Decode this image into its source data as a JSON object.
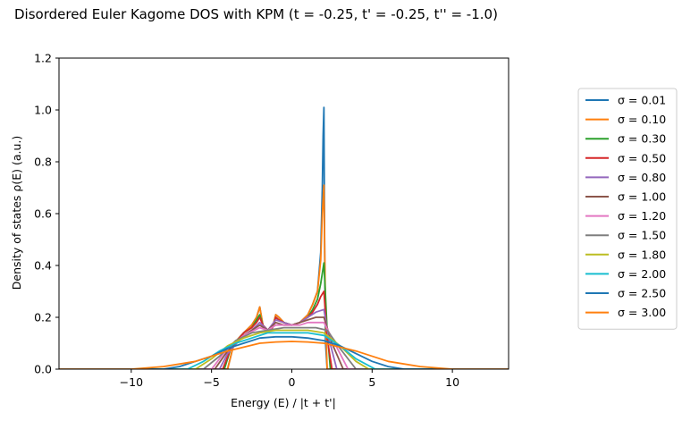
{
  "chart_data": {
    "type": "line",
    "title": "Disordered Euler Kagome DOS with KPM (t = -0.25, t' = -0.25, t'' = -1.0)",
    "xlabel": "Energy (E) / |t + t'|",
    "ylabel": "Density of states ρ(E) (a.u.)",
    "xlim": [
      -14.5,
      13.5
    ],
    "ylim": [
      0,
      1.2
    ],
    "xticks": [
      -10,
      -5,
      0,
      5,
      10
    ],
    "xtick_labels": [
      "−10",
      "−5",
      "0",
      "5",
      "10"
    ],
    "yticks": [
      0.0,
      0.2,
      0.4,
      0.6,
      0.8,
      1.0,
      1.2
    ],
    "ytick_labels": [
      "0.0",
      "0.2",
      "0.4",
      "0.6",
      "0.8",
      "1.0",
      "1.2"
    ],
    "grid": false,
    "legend_position": "right",
    "series": [
      {
        "name": "σ = 0.01",
        "color": "#1f77b4",
        "x": [
          -4,
          -3.6,
          -3,
          -2.5,
          -2.2,
          -2,
          -1.8,
          -1.5,
          -1.2,
          -1,
          -0.8,
          -0.5,
          0,
          0.5,
          1,
          1.3,
          1.6,
          1.8,
          1.9,
          1.95,
          2,
          2.05,
          2.1,
          2.2
        ],
        "y": [
          0,
          0.1,
          0.14,
          0.17,
          0.2,
          0.24,
          0.17,
          0.15,
          0.16,
          0.21,
          0.2,
          0.18,
          0.17,
          0.18,
          0.21,
          0.25,
          0.3,
          0.45,
          0.7,
          0.9,
          1.01,
          0.4,
          0.1,
          0
        ]
      },
      {
        "name": "σ = 0.10",
        "color": "#ff7f0e",
        "x": [
          -4,
          -3.6,
          -3,
          -2.5,
          -2.2,
          -2,
          -1.8,
          -1.5,
          -1.2,
          -1,
          -0.8,
          -0.5,
          0,
          0.5,
          1,
          1.3,
          1.6,
          1.8,
          1.9,
          2,
          2.1,
          2.2
        ],
        "y": [
          0,
          0.1,
          0.14,
          0.17,
          0.2,
          0.24,
          0.17,
          0.15,
          0.16,
          0.21,
          0.2,
          0.18,
          0.17,
          0.18,
          0.21,
          0.25,
          0.3,
          0.42,
          0.6,
          0.71,
          0.2,
          0
        ]
      },
      {
        "name": "σ = 0.30",
        "color": "#2ca02c",
        "x": [
          -4.2,
          -3.8,
          -3,
          -2.5,
          -2.2,
          -2,
          -1.8,
          -1.5,
          -1.2,
          -1,
          -0.8,
          -0.5,
          0,
          0.5,
          1,
          1.3,
          1.6,
          1.8,
          2,
          2.2,
          2.4
        ],
        "y": [
          0,
          0.08,
          0.14,
          0.16,
          0.19,
          0.21,
          0.17,
          0.15,
          0.16,
          0.2,
          0.19,
          0.18,
          0.17,
          0.18,
          0.2,
          0.23,
          0.27,
          0.33,
          0.41,
          0.15,
          0
        ]
      },
      {
        "name": "σ = 0.50",
        "color": "#d62728",
        "x": [
          -4.3,
          -3.8,
          -3,
          -2.5,
          -2.2,
          -2,
          -1.8,
          -1.5,
          -1.2,
          -1,
          -0.8,
          -0.5,
          0,
          0.5,
          1,
          1.3,
          1.6,
          1.8,
          2,
          2.2,
          2.5
        ],
        "y": [
          0,
          0.08,
          0.14,
          0.16,
          0.18,
          0.2,
          0.17,
          0.15,
          0.16,
          0.2,
          0.19,
          0.18,
          0.17,
          0.18,
          0.2,
          0.22,
          0.25,
          0.28,
          0.3,
          0.12,
          0
        ]
      },
      {
        "name": "σ = 0.80",
        "color": "#9467bd",
        "x": [
          -4.5,
          -4,
          -3,
          -2.5,
          -2,
          -1.5,
          -1,
          -0.5,
          0,
          0.5,
          1,
          1.5,
          2,
          2.3,
          2.8
        ],
        "y": [
          0,
          0.06,
          0.13,
          0.15,
          0.18,
          0.15,
          0.19,
          0.18,
          0.17,
          0.18,
          0.2,
          0.22,
          0.23,
          0.12,
          0
        ]
      },
      {
        "name": "σ = 1.00",
        "color": "#8c564b",
        "x": [
          -4.8,
          -4,
          -3,
          -2.5,
          -2,
          -1.5,
          -1,
          -0.5,
          0,
          0.5,
          1,
          1.5,
          2,
          2.5,
          3.2
        ],
        "y": [
          0,
          0.07,
          0.13,
          0.15,
          0.17,
          0.15,
          0.18,
          0.17,
          0.17,
          0.18,
          0.19,
          0.2,
          0.2,
          0.1,
          0
        ]
      },
      {
        "name": "σ = 1.20",
        "color": "#e377c2",
        "x": [
          -5,
          -4,
          -3,
          -2,
          -1.5,
          -1,
          -0.5,
          0,
          0.5,
          1,
          1.5,
          2,
          2.5,
          3.5
        ],
        "y": [
          0,
          0.08,
          0.13,
          0.16,
          0.15,
          0.17,
          0.17,
          0.17,
          0.17,
          0.18,
          0.18,
          0.18,
          0.12,
          0
        ]
      },
      {
        "name": "σ = 1.50",
        "color": "#7f7f7f",
        "x": [
          -5.5,
          -4.5,
          -3.5,
          -2.5,
          -1.5,
          -0.5,
          0.5,
          1.5,
          2.2,
          3,
          4
        ],
        "y": [
          0,
          0.05,
          0.11,
          0.14,
          0.15,
          0.16,
          0.16,
          0.16,
          0.15,
          0.08,
          0
        ]
      },
      {
        "name": "σ = 1.80",
        "color": "#bcbd22",
        "x": [
          -6,
          -5,
          -4,
          -3,
          -2,
          -1,
          0,
          1,
          2,
          3,
          4,
          4.8
        ],
        "y": [
          0,
          0.04,
          0.09,
          0.12,
          0.14,
          0.15,
          0.15,
          0.15,
          0.14,
          0.09,
          0.03,
          0
        ]
      },
      {
        "name": "σ = 2.00",
        "color": "#17becf",
        "x": [
          -6.5,
          -5.5,
          -4.5,
          -3.5,
          -2.5,
          -1.5,
          0,
          1,
          2,
          3,
          4,
          5.2
        ],
        "y": [
          0,
          0.03,
          0.07,
          0.1,
          0.12,
          0.14,
          0.14,
          0.14,
          0.13,
          0.09,
          0.04,
          0
        ]
      },
      {
        "name": "σ = 2.50",
        "color": "#1f77b4",
        "x": [
          -8,
          -7,
          -6,
          -5,
          -4,
          -3,
          -2,
          -1,
          0,
          1,
          2,
          3,
          4,
          5,
          6,
          7
        ],
        "y": [
          0,
          0.01,
          0.03,
          0.05,
          0.08,
          0.1,
          0.12,
          0.125,
          0.125,
          0.12,
          0.11,
          0.09,
          0.06,
          0.03,
          0.01,
          0
        ]
      },
      {
        "name": "σ = 3.00",
        "color": "#ff7f0e",
        "x": [
          -10,
          -8,
          -6,
          -4,
          -2,
          -1,
          0,
          1,
          2,
          4,
          6,
          8,
          10
        ],
        "y": [
          0,
          0.01,
          0.03,
          0.07,
          0.1,
          0.105,
          0.107,
          0.105,
          0.1,
          0.07,
          0.03,
          0.01,
          0
        ]
      }
    ]
  }
}
